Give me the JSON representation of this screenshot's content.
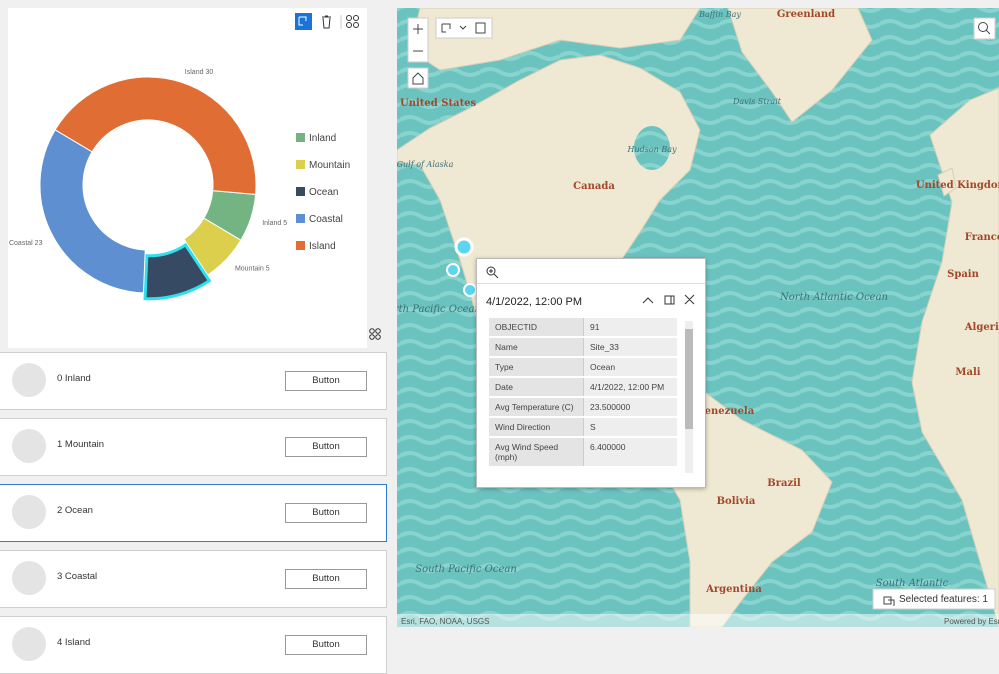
{
  "chart_data": {
    "type": "donut",
    "categories": [
      "Inland",
      "Mountain",
      "Ocean",
      "Coastal",
      "Island"
    ],
    "values": [
      5,
      5,
      7,
      23,
      30
    ],
    "colors": [
      "#74b483",
      "#dccf4c",
      "#364a63",
      "#5e8fd0",
      "#e06d33"
    ],
    "selected": 2,
    "legend": "right"
  },
  "list": [
    {
      "label": "0 Inland",
      "button": "Button"
    },
    {
      "label": "1 Mountain",
      "button": "Button"
    },
    {
      "label": "2 Ocean",
      "button": "Button"
    },
    {
      "label": "3 Coastal",
      "button": "Button"
    },
    {
      "label": "4 Island",
      "button": "Button"
    }
  ],
  "map": {
    "labels": [
      "Greenland",
      "Canada",
      "North Pacific Ocean",
      "North Atlantic Ocean",
      "Venezuela",
      "Bolivia",
      "Brazil",
      "Argentina",
      "United Kingdom",
      "Spain",
      "Mali",
      "Algeria",
      "South Pacific Ocean",
      "South Atlantic",
      "Hudson Bay",
      "Gulf of Alaska",
      "Davis Strait",
      "Baffin Bay",
      "United States",
      "France"
    ],
    "attribution": "Esri, FAO, NOAA, USGS",
    "powered_by": "Powered by Esri",
    "selection": "Selected features: 1"
  },
  "popup": {
    "title": "4/1/2022, 12:00 PM",
    "rows": [
      [
        "OBJECTID",
        "91"
      ],
      [
        "Name",
        "Site_33"
      ],
      [
        "Type",
        "Ocean"
      ],
      [
        "Date",
        "4/1/2022, 12:00 PM"
      ],
      [
        "Avg Temperature (C)",
        "23.500000"
      ],
      [
        "Wind Direction",
        "S"
      ],
      [
        "Avg Wind Speed (mph)",
        "6.400000"
      ]
    ]
  }
}
